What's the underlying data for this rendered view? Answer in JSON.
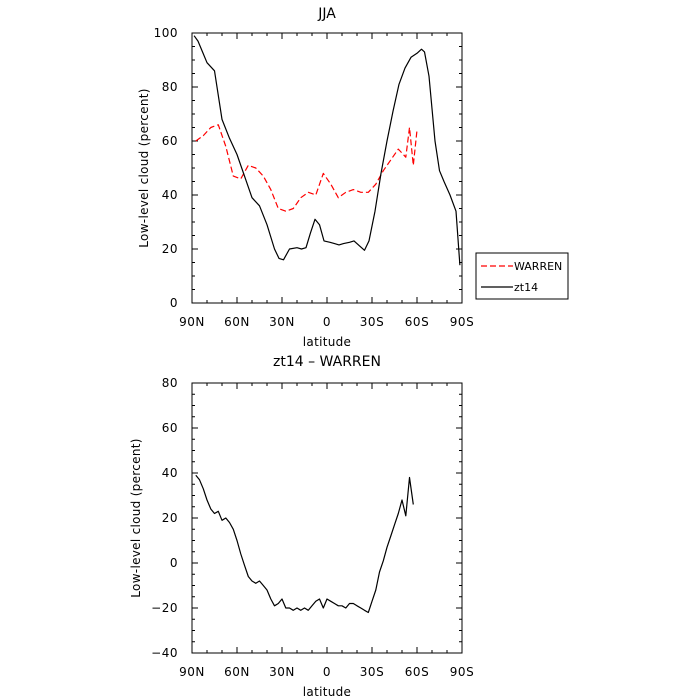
{
  "chart_data": [
    {
      "type": "line",
      "title": "JJA",
      "xlabel": "latitude",
      "ylabel": "Low-level cloud (percent)",
      "xlim": [
        90,
        -90
      ],
      "ylim": [
        0,
        100
      ],
      "xticks": [
        90,
        60,
        30,
        0,
        -30,
        -60,
        -90
      ],
      "xtick_labels": [
        "90N",
        "60N",
        "30N",
        "0",
        "30S",
        "60S",
        "90S"
      ],
      "yticks": [
        0,
        20,
        40,
        60,
        80,
        100
      ],
      "ytick_labels": [
        "0",
        "20",
        "40",
        "60",
        "80",
        "100"
      ],
      "legend_position": "right",
      "series": [
        {
          "name": "WARREN",
          "color": "#ff0000",
          "dash": "dashed",
          "points": [
            [
              87.5,
              60
            ],
            [
              82.5,
              62
            ],
            [
              77.5,
              65
            ],
            [
              72.5,
              66
            ],
            [
              67.5,
              58
            ],
            [
              62.5,
              47
            ],
            [
              57.5,
              46
            ],
            [
              52.5,
              51
            ],
            [
              47.5,
              50
            ],
            [
              42.5,
              47
            ],
            [
              37.5,
              42
            ],
            [
              32.5,
              35
            ],
            [
              27.5,
              34
            ],
            [
              22.5,
              35
            ],
            [
              17.5,
              39
            ],
            [
              12.5,
              41
            ],
            [
              7.5,
              40
            ],
            [
              2.5,
              48
            ],
            [
              -2.5,
              44
            ],
            [
              -7.5,
              39
            ],
            [
              -12.5,
              41
            ],
            [
              -17.5,
              42
            ],
            [
              -22.5,
              41
            ],
            [
              -27.5,
              41
            ],
            [
              -32.5,
              44
            ],
            [
              -37.5,
              49
            ],
            [
              -42.5,
              53
            ],
            [
              -47.5,
              57
            ],
            [
              -52.5,
              54
            ],
            [
              -55,
              65
            ],
            [
              -57.5,
              51
            ],
            [
              -60,
              64
            ]
          ]
        },
        {
          "name": "zt14",
          "color": "#000000",
          "dash": "solid",
          "points": [
            [
              88.6,
              99
            ],
            [
              86,
              97
            ],
            [
              83,
              93
            ],
            [
              80,
              89
            ],
            [
              75,
              86
            ],
            [
              70,
              68
            ],
            [
              65,
              61
            ],
            [
              60,
              55
            ],
            [
              55,
              47
            ],
            [
              50,
              39
            ],
            [
              45,
              36
            ],
            [
              40,
              29
            ],
            [
              35,
              20
            ],
            [
              32,
              16.5
            ],
            [
              29,
              16
            ],
            [
              25,
              20
            ],
            [
              20,
              20.5
            ],
            [
              17,
              20
            ],
            [
              14,
              20.5
            ],
            [
              11,
              26
            ],
            [
              8,
              31
            ],
            [
              5,
              29
            ],
            [
              2,
              23
            ],
            [
              -2,
              22.5
            ],
            [
              -5,
              22
            ],
            [
              -8,
              21.5
            ],
            [
              -11,
              22
            ],
            [
              -15,
              22.5
            ],
            [
              -18,
              23
            ],
            [
              -22,
              21
            ],
            [
              -25,
              19.5
            ],
            [
              -28,
              23
            ],
            [
              -32,
              34
            ],
            [
              -36,
              48
            ],
            [
              -40,
              60
            ],
            [
              -44,
              71
            ],
            [
              -48,
              81
            ],
            [
              -52,
              87
            ],
            [
              -56,
              91
            ],
            [
              -60,
              92.5
            ],
            [
              -63,
              94
            ],
            [
              -65,
              93
            ],
            [
              -68,
              84
            ],
            [
              -72,
              60
            ],
            [
              -75,
              49
            ],
            [
              -78,
              45
            ],
            [
              -82,
              40
            ],
            [
              -86,
              34
            ],
            [
              -88.6,
              14
            ]
          ]
        }
      ]
    },
    {
      "type": "line",
      "title": "zt14 – WARREN",
      "xlabel": "latitude",
      "ylabel": "Low-level cloud (percent)",
      "xlim": [
        90,
        -90
      ],
      "ylim": [
        -40,
        80
      ],
      "xticks": [
        90,
        60,
        30,
        0,
        -30,
        -60,
        -90
      ],
      "xtick_labels": [
        "90N",
        "60N",
        "30N",
        "0",
        "30S",
        "60S",
        "90S"
      ],
      "yticks": [
        -40,
        -20,
        0,
        20,
        40,
        60,
        80
      ],
      "ytick_labels": [
        "−40",
        "−20",
        "0",
        "20",
        "40",
        "60",
        "80"
      ],
      "series": [
        {
          "name": "zt14 – WARREN",
          "color": "#000000",
          "dash": "solid",
          "points": [
            [
              87.5,
              39
            ],
            [
              85,
              37
            ],
            [
              82.5,
              33
            ],
            [
              80,
              28
            ],
            [
              77.5,
              24
            ],
            [
              75,
              22
            ],
            [
              72.5,
              23
            ],
            [
              70,
              19
            ],
            [
              67.5,
              20
            ],
            [
              65,
              18
            ],
            [
              62.5,
              15
            ],
            [
              60,
              10
            ],
            [
              57.5,
              4
            ],
            [
              55,
              -1
            ],
            [
              52.5,
              -6
            ],
            [
              50,
              -8
            ],
            [
              47.5,
              -9
            ],
            [
              45,
              -8
            ],
            [
              42.5,
              -10
            ],
            [
              40,
              -12
            ],
            [
              37.5,
              -16
            ],
            [
              35,
              -19
            ],
            [
              32.5,
              -18
            ],
            [
              30,
              -16
            ],
            [
              27.5,
              -20
            ],
            [
              25,
              -20
            ],
            [
              22.5,
              -21
            ],
            [
              20,
              -20
            ],
            [
              17.5,
              -21
            ],
            [
              15,
              -20
            ],
            [
              12.5,
              -21
            ],
            [
              10,
              -19
            ],
            [
              7.5,
              -17
            ],
            [
              5,
              -16
            ],
            [
              2.5,
              -20
            ],
            [
              0,
              -16
            ],
            [
              -2.5,
              -17
            ],
            [
              -5,
              -18
            ],
            [
              -7.5,
              -19
            ],
            [
              -10,
              -19
            ],
            [
              -12.5,
              -20
            ],
            [
              -15,
              -18
            ],
            [
              -17.5,
              -18
            ],
            [
              -20,
              -19
            ],
            [
              -22.5,
              -20
            ],
            [
              -25,
              -21
            ],
            [
              -27.5,
              -22
            ],
            [
              -30,
              -17
            ],
            [
              -32.5,
              -12
            ],
            [
              -35,
              -4
            ],
            [
              -37.5,
              1
            ],
            [
              -40,
              7
            ],
            [
              -42.5,
              12
            ],
            [
              -45,
              17
            ],
            [
              -47.5,
              22
            ],
            [
              -50,
              28
            ],
            [
              -52.5,
              21
            ],
            [
              -55,
              38
            ],
            [
              -57.5,
              26
            ]
          ]
        }
      ]
    }
  ]
}
